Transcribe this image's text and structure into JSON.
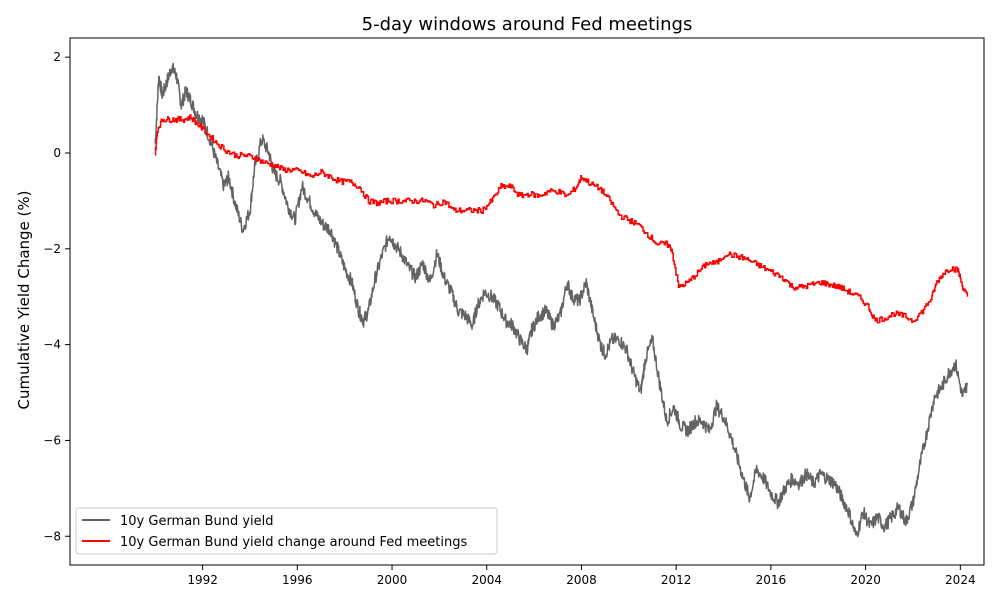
{
  "chart_data": {
    "type": "line",
    "title": "5-day windows around Fed meetings",
    "xlabel": "",
    "ylabel": "Cumulative Yield Change (%)",
    "xlim": [
      1986.4,
      2025.0
    ],
    "ylim": [
      -8.6,
      2.4
    ],
    "x_ticks": [
      1992,
      1996,
      2000,
      2004,
      2008,
      2012,
      2016,
      2020,
      2024
    ],
    "y_ticks": [
      2,
      0,
      -2,
      -4,
      -6,
      -8
    ],
    "y_tick_labels": [
      "2",
      "0",
      "−2",
      "−4",
      "−6",
      "−8"
    ],
    "grid": false,
    "legend_position": "lower-left",
    "series": [
      {
        "name": "10y German Bund yield",
        "color": "#636363",
        "x": [
          1990.0,
          1990.15,
          1990.3,
          1990.5,
          1990.7,
          1990.9,
          1991.1,
          1991.3,
          1991.5,
          1991.75,
          1992.0,
          1992.3,
          1992.6,
          1992.9,
          1993.1,
          1993.4,
          1993.7,
          1994.0,
          1994.2,
          1994.5,
          1994.8,
          1995.0,
          1995.3,
          1995.6,
          1995.9,
          1996.2,
          1996.5,
          1996.8,
          1997.1,
          1997.4,
          1997.7,
          1998.0,
          1998.3,
          1998.6,
          1998.8,
          1999.0,
          1999.3,
          1999.6,
          1999.9,
          2000.1,
          2000.4,
          2000.7,
          2001.0,
          2001.3,
          2001.6,
          2001.9,
          2002.2,
          2002.5,
          2002.8,
          2003.1,
          2003.4,
          2003.6,
          2003.9,
          2004.2,
          2004.5,
          2004.8,
          2005.1,
          2005.4,
          2005.7,
          2005.9,
          2006.2,
          2006.5,
          2006.8,
          2007.1,
          2007.4,
          2007.6,
          2007.9,
          2008.2,
          2008.5,
          2008.8,
          2009.0,
          2009.3,
          2009.6,
          2009.9,
          2010.2,
          2010.5,
          2010.7,
          2011.0,
          2011.3,
          2011.6,
          2011.9,
          2012.2,
          2012.5,
          2012.8,
          2013.1,
          2013.4,
          2013.7,
          2014.0,
          2014.3,
          2014.6,
          2014.9,
          2015.1,
          2015.4,
          2015.7,
          2016.0,
          2016.3,
          2016.6,
          2016.9,
          2017.2,
          2017.5,
          2017.8,
          2018.1,
          2018.4,
          2018.7,
          2019.0,
          2019.3,
          2019.6,
          2019.9,
          2020.2,
          2020.5,
          2020.8,
          2021.1,
          2021.4,
          2021.7,
          2022.0,
          2022.3,
          2022.6,
          2022.9,
          2023.2,
          2023.5,
          2023.8,
          2024.1,
          2024.3
        ],
        "y": [
          0.2,
          1.6,
          1.2,
          1.5,
          1.8,
          1.6,
          1.0,
          1.3,
          1.1,
          0.8,
          0.7,
          0.3,
          -0.2,
          -0.7,
          -0.5,
          -1.1,
          -1.6,
          -1.2,
          -0.3,
          0.3,
          0.0,
          -0.4,
          -0.6,
          -1.1,
          -1.4,
          -0.7,
          -1.0,
          -1.3,
          -1.5,
          -1.6,
          -2.0,
          -2.4,
          -2.7,
          -3.3,
          -3.5,
          -3.3,
          -2.6,
          -2.1,
          -1.7,
          -1.9,
          -2.1,
          -2.4,
          -2.6,
          -2.3,
          -2.7,
          -2.1,
          -2.6,
          -2.9,
          -3.3,
          -3.4,
          -3.6,
          -3.2,
          -2.9,
          -3.0,
          -3.2,
          -3.5,
          -3.6,
          -3.9,
          -4.1,
          -3.7,
          -3.4,
          -3.3,
          -3.6,
          -3.4,
          -2.7,
          -3.0,
          -3.1,
          -2.7,
          -3.4,
          -4.0,
          -4.2,
          -3.9,
          -3.9,
          -4.1,
          -4.6,
          -5.0,
          -4.3,
          -3.9,
          -4.8,
          -5.6,
          -5.3,
          -5.7,
          -5.8,
          -5.6,
          -5.6,
          -5.8,
          -5.3,
          -5.5,
          -5.9,
          -6.4,
          -6.9,
          -7.2,
          -6.6,
          -6.8,
          -7.1,
          -7.3,
          -7.0,
          -6.8,
          -6.9,
          -6.7,
          -6.9,
          -6.7,
          -6.8,
          -6.9,
          -7.2,
          -7.5,
          -8.0,
          -7.5,
          -7.8,
          -7.6,
          -7.8,
          -7.6,
          -7.4,
          -7.7,
          -7.3,
          -6.5,
          -5.8,
          -5.1,
          -4.9,
          -4.6,
          -4.4,
          -5.1,
          -4.8
        ]
      },
      {
        "name": "10y German Bund yield change around Fed meetings",
        "color": "#ff0000",
        "x": [
          1990.0,
          1990.1,
          1990.3,
          1990.6,
          1990.9,
          1991.2,
          1991.5,
          1991.8,
          1992.2,
          1992.6,
          1993.0,
          1993.4,
          1993.8,
          1994.2,
          1994.6,
          1995.0,
          1995.4,
          1995.8,
          1996.2,
          1996.6,
          1997.0,
          1997.4,
          1997.8,
          1998.2,
          1998.6,
          1999.0,
          1999.4,
          1999.8,
          2000.2,
          2000.6,
          2001.0,
          2001.4,
          2001.8,
          2002.2,
          2002.6,
          2003.0,
          2003.4,
          2003.8,
          2004.2,
          2004.6,
          2005.0,
          2005.4,
          2005.8,
          2006.2,
          2006.6,
          2007.0,
          2007.4,
          2007.8,
          2008.0,
          2008.4,
          2008.8,
          2009.2,
          2009.6,
          2010.0,
          2010.4,
          2010.8,
          2011.2,
          2011.6,
          2011.8,
          2012.1,
          2012.5,
          2012.9,
          2013.3,
          2013.7,
          2014.1,
          2014.5,
          2014.9,
          2015.3,
          2015.7,
          2016.1,
          2016.5,
          2016.9,
          2017.3,
          2017.7,
          2018.1,
          2018.5,
          2018.9,
          2019.3,
          2019.7,
          2020.1,
          2020.4,
          2020.8,
          2021.2,
          2021.6,
          2022.0,
          2022.4,
          2022.8,
          2023.0,
          2023.3,
          2023.6,
          2023.9,
          2024.1,
          2024.3
        ],
        "y": [
          0.0,
          0.5,
          0.7,
          0.7,
          0.7,
          0.7,
          0.75,
          0.6,
          0.4,
          0.2,
          0.05,
          -0.05,
          -0.05,
          -0.1,
          -0.2,
          -0.25,
          -0.35,
          -0.35,
          -0.4,
          -0.5,
          -0.4,
          -0.5,
          -0.6,
          -0.6,
          -0.7,
          -1.0,
          -1.05,
          -1.0,
          -1.0,
          -1.0,
          -1.0,
          -1.0,
          -1.1,
          -1.0,
          -1.2,
          -1.2,
          -1.2,
          -1.2,
          -1.0,
          -0.7,
          -0.7,
          -0.9,
          -0.85,
          -0.9,
          -0.8,
          -0.8,
          -0.9,
          -0.7,
          -0.5,
          -0.65,
          -0.75,
          -1.0,
          -1.3,
          -1.4,
          -1.5,
          -1.7,
          -1.9,
          -1.9,
          -2.0,
          -2.8,
          -2.7,
          -2.5,
          -2.3,
          -2.3,
          -2.1,
          -2.15,
          -2.2,
          -2.3,
          -2.4,
          -2.5,
          -2.6,
          -2.8,
          -2.8,
          -2.75,
          -2.7,
          -2.75,
          -2.8,
          -2.9,
          -3.0,
          -3.2,
          -3.5,
          -3.45,
          -3.35,
          -3.4,
          -3.5,
          -3.3,
          -3.0,
          -2.7,
          -2.5,
          -2.4,
          -2.45,
          -2.8,
          -3.0
        ]
      }
    ]
  }
}
